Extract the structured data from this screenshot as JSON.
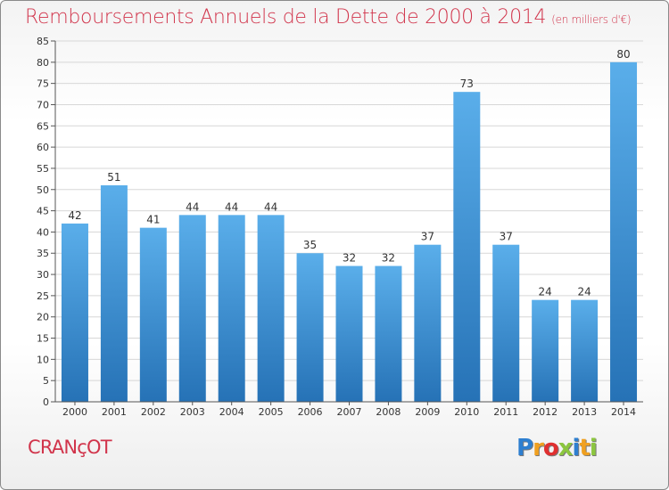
{
  "title": "Remboursements Annuels de la Dette de 2000 à 2014",
  "subtitle": "(en milliers d'€)",
  "place": "CRANçOT",
  "logo": {
    "text": "Proxiti",
    "letters": [
      "P",
      "r",
      "o",
      "x",
      "i",
      "t",
      "i"
    ],
    "colors": [
      "#2e7fd0",
      "#f0a020",
      "#e03030",
      "#8cc63f",
      "#2e7fd0",
      "#f0a020",
      "#8cc63f"
    ]
  },
  "colors": {
    "title": "#d1344b",
    "bar_top": "#5aaeea",
    "bar_bottom": "#2672b6",
    "grid": "#d7d7d7"
  },
  "chart_data": {
    "type": "bar",
    "categories": [
      "2000",
      "2001",
      "2002",
      "2003",
      "2004",
      "2005",
      "2006",
      "2007",
      "2008",
      "2009",
      "2010",
      "2011",
      "2012",
      "2013",
      "2014"
    ],
    "values": [
      42,
      51,
      41,
      44,
      44,
      44,
      35,
      32,
      32,
      37,
      73,
      37,
      24,
      24,
      80
    ],
    "title": "Remboursements Annuels de la Dette de 2000 à 2014",
    "ylim": [
      0,
      85
    ],
    "yticks": [
      0,
      5,
      10,
      15,
      20,
      25,
      30,
      35,
      40,
      45,
      50,
      55,
      60,
      65,
      70,
      75,
      80,
      85
    ],
    "grid": true
  }
}
